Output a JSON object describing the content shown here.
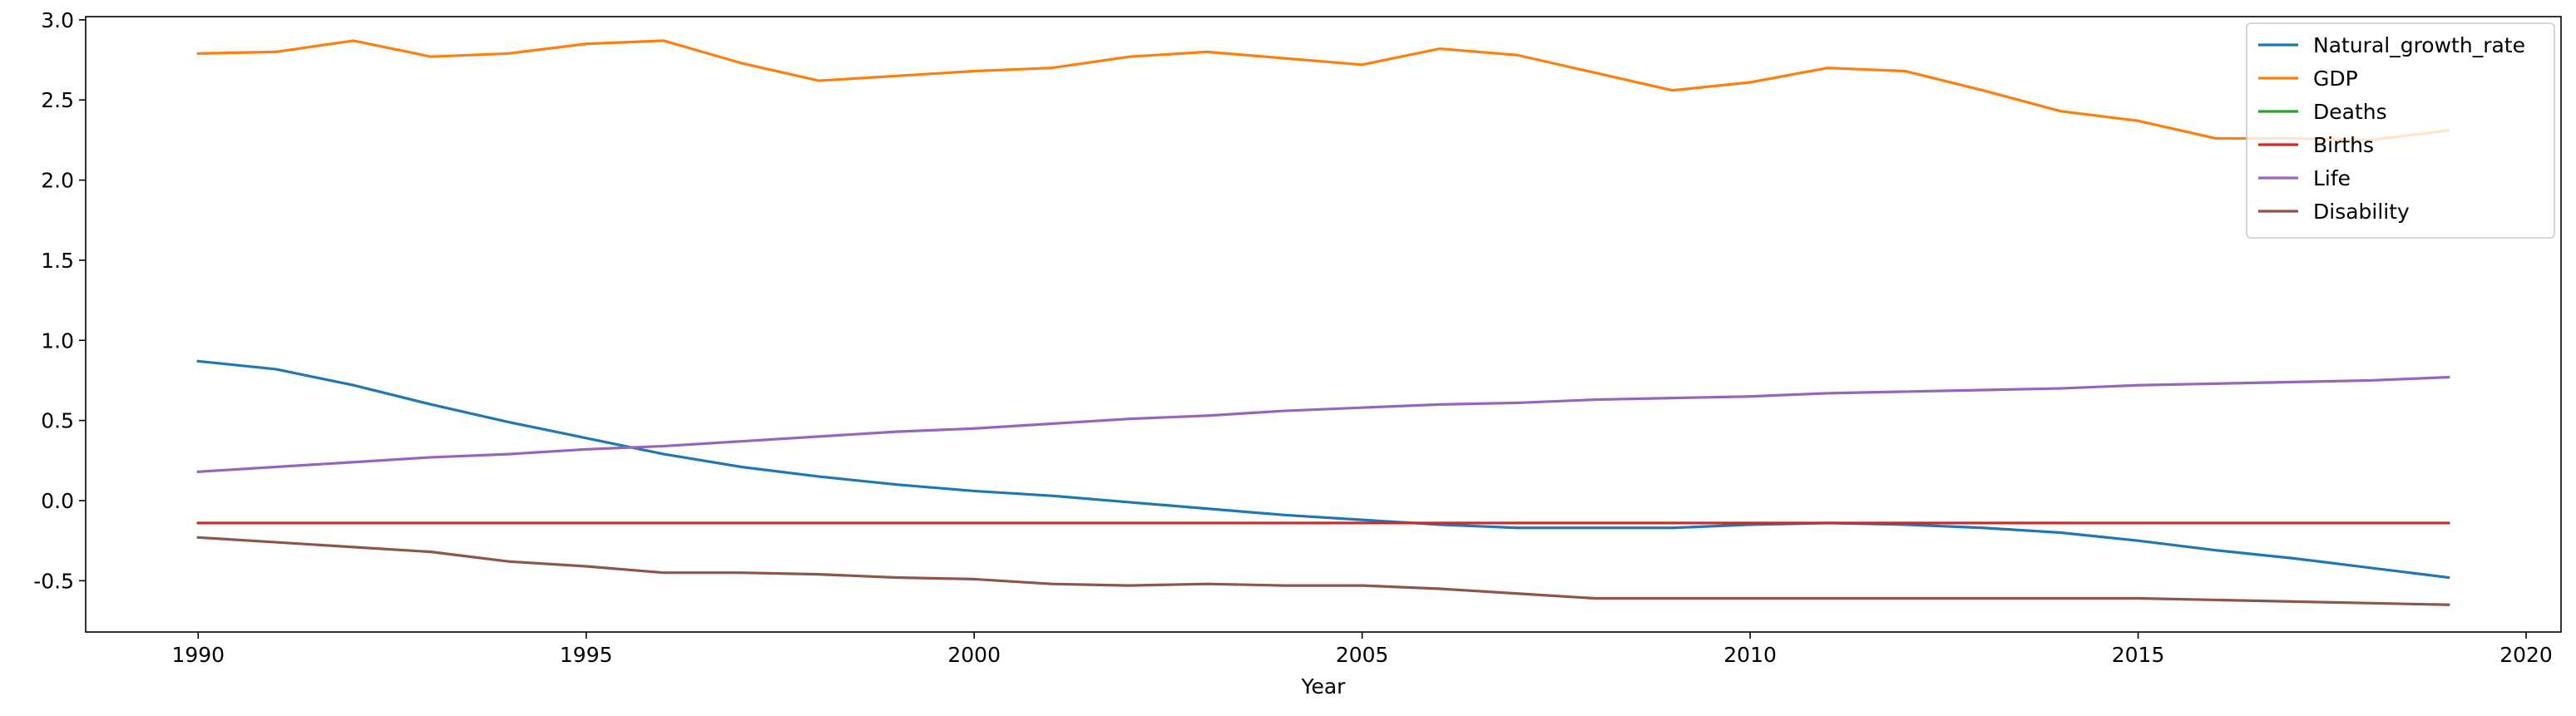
{
  "chart_data": {
    "type": "line",
    "title": "",
    "xlabel": "Year",
    "ylabel": "",
    "xlim": [
      1988.55,
      2020.45
    ],
    "ylim": [
      -0.82,
      3.02
    ],
    "xticks": [
      1990,
      1995,
      2000,
      2005,
      2010,
      2015,
      2020
    ],
    "yticks": [
      -0.5,
      0.0,
      0.5,
      1.0,
      1.5,
      2.0,
      2.5,
      3.0
    ],
    "grid": false,
    "legend_position": "top-right",
    "x": [
      1990,
      1991,
      1992,
      1993,
      1994,
      1995,
      1996,
      1997,
      1998,
      1999,
      2000,
      2001,
      2002,
      2003,
      2004,
      2005,
      2006,
      2007,
      2008,
      2009,
      2010,
      2011,
      2012,
      2013,
      2014,
      2015,
      2016,
      2017,
      2018,
      2019
    ],
    "series": [
      {
        "name": "Natural_growth_rate",
        "color": "#1f77b4",
        "values": [
          0.87,
          0.82,
          0.72,
          0.6,
          0.49,
          0.39,
          0.29,
          0.21,
          0.15,
          0.1,
          0.06,
          0.03,
          -0.01,
          -0.05,
          -0.09,
          -0.12,
          -0.15,
          -0.17,
          -0.17,
          -0.17,
          -0.15,
          -0.14,
          -0.15,
          -0.17,
          -0.2,
          -0.25,
          -0.31,
          -0.36,
          -0.42,
          -0.48
        ]
      },
      {
        "name": "GDP",
        "color": "#ff7f0e",
        "values": [
          2.79,
          2.8,
          2.87,
          2.77,
          2.79,
          2.85,
          2.87,
          2.73,
          2.62,
          2.65,
          2.68,
          2.7,
          2.77,
          2.8,
          2.76,
          2.72,
          2.82,
          2.78,
          2.67,
          2.56,
          2.61,
          2.7,
          2.68,
          2.56,
          2.43,
          2.37,
          2.26,
          2.26,
          2.25,
          2.31
        ]
      },
      {
        "name": "Deaths",
        "color": "#2ca02c",
        "values": [
          -0.14,
          -0.14,
          -0.14,
          -0.14,
          -0.14,
          -0.14,
          -0.14,
          -0.14,
          -0.14,
          -0.14,
          -0.14,
          -0.14,
          -0.14,
          -0.14,
          -0.14,
          -0.14,
          -0.14,
          -0.14,
          -0.14,
          -0.14,
          -0.14,
          -0.14,
          -0.14,
          -0.14,
          -0.14,
          -0.14,
          -0.14,
          -0.14,
          -0.14,
          -0.14
        ]
      },
      {
        "name": "Births",
        "color": "#d62728",
        "values": [
          -0.14,
          -0.14,
          -0.14,
          -0.14,
          -0.14,
          -0.14,
          -0.14,
          -0.14,
          -0.14,
          -0.14,
          -0.14,
          -0.14,
          -0.14,
          -0.14,
          -0.14,
          -0.14,
          -0.14,
          -0.14,
          -0.14,
          -0.14,
          -0.14,
          -0.14,
          -0.14,
          -0.14,
          -0.14,
          -0.14,
          -0.14,
          -0.14,
          -0.14,
          -0.14
        ]
      },
      {
        "name": "Life",
        "color": "#9467bd",
        "values": [
          0.18,
          0.21,
          0.24,
          0.27,
          0.29,
          0.32,
          0.34,
          0.37,
          0.4,
          0.43,
          0.45,
          0.48,
          0.51,
          0.53,
          0.56,
          0.58,
          0.6,
          0.61,
          0.63,
          0.64,
          0.65,
          0.67,
          0.68,
          0.69,
          0.7,
          0.72,
          0.73,
          0.74,
          0.75,
          0.77
        ]
      },
      {
        "name": "Disability",
        "color": "#8c564b",
        "values": [
          -0.23,
          -0.26,
          -0.29,
          -0.32,
          -0.38,
          -0.41,
          -0.45,
          -0.45,
          -0.46,
          -0.48,
          -0.49,
          -0.52,
          -0.53,
          -0.52,
          -0.53,
          -0.53,
          -0.55,
          -0.58,
          -0.61,
          -0.61,
          -0.61,
          -0.61,
          -0.61,
          -0.61,
          -0.61,
          -0.61,
          -0.62,
          -0.63,
          -0.64,
          -0.65
        ]
      }
    ]
  }
}
